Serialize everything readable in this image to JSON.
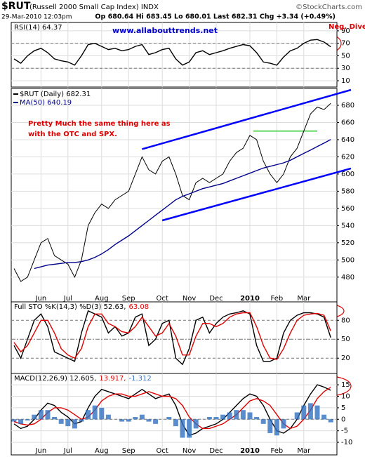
{
  "header": {
    "symbol": "$RUT",
    "name": "(Russell 2000 Small Cap Index) INDX",
    "date": "29-Mar-2010 12:03pm",
    "quote": "Op 680.64 Hi 683.45 Lo 680.01 Last 682.31 Chg +3.34 (+0.49%)",
    "brand": "©StockCharts.com"
  },
  "chart_data": [
    {
      "type": "line",
      "title": "RSI(14) 64.37",
      "ylim": [
        4.4,
        100
      ],
      "yticks": [
        10,
        30,
        50,
        70,
        90
      ],
      "reference_lines": [
        70,
        30
      ],
      "grid": true,
      "annotations": [
        {
          "text": "www.allabouttrends.net",
          "color": "#0000cc"
        },
        {
          "text": "Neg. Divergence",
          "color": "#e00000"
        }
      ],
      "series": [
        {
          "name": "RSI(14)",
          "color": "#000000",
          "values": [
            45,
            38,
            50,
            58,
            62,
            55,
            45,
            42,
            40,
            35,
            50,
            68,
            70,
            65,
            60,
            62,
            58,
            60,
            65,
            68,
            52,
            55,
            60,
            62,
            45,
            35,
            40,
            55,
            58,
            52,
            55,
            58,
            62,
            65,
            68,
            66,
            55,
            40,
            38,
            35,
            48,
            58,
            62,
            70,
            75,
            76,
            72,
            64.37
          ]
        }
      ]
    },
    {
      "type": "line",
      "ylim": [
        461,
        698
      ],
      "yticks": [
        480,
        500,
        520,
        540,
        560,
        580,
        600,
        620,
        640,
        660,
        680
      ],
      "grid": true,
      "categories": [
        null,
        null,
        null,
        null,
        "Jun",
        null,
        null,
        null,
        "Jul",
        null,
        null,
        null,
        null,
        "Aug",
        null,
        null,
        null,
        "Sep",
        null,
        null,
        null,
        null,
        "Oct",
        null,
        null,
        null,
        "Nov",
        null,
        null,
        null,
        "Dec",
        null,
        null,
        null,
        null,
        "2010",
        null,
        null,
        null,
        "Feb",
        null,
        null,
        null,
        "Mar",
        null,
        null,
        null,
        null
      ],
      "annotations": [
        {
          "text": "Pretty Much the same thing here as",
          "color": "#e00000"
        },
        {
          "text": "with the OTC and SPX.",
          "color": "#e00000"
        }
      ],
      "trendlines": [
        {
          "x": [
            19,
            50
          ],
          "y": [
            629,
            698
          ],
          "color": "#0000ff"
        },
        {
          "x": [
            22,
            50
          ],
          "y": [
            546,
            606.5
          ],
          "color": "#0000ff"
        },
        {
          "x": [
            35.5,
            45
          ],
          "y": [
            650,
            650
          ],
          "color": "#00c000"
        }
      ],
      "series": [
        {
          "name": "$RUT (Daily) 682.31",
          "color": "#000000",
          "values": [
            490,
            475,
            480,
            500,
            520,
            525,
            505,
            500,
            495,
            480,
            500,
            540,
            555,
            565,
            560,
            570,
            575,
            580,
            600,
            620,
            605,
            600,
            615,
            620,
            600,
            575,
            570,
            590,
            595,
            590,
            595,
            600,
            615,
            625,
            630,
            645,
            640,
            615,
            600,
            590,
            600,
            620,
            630,
            650,
            670,
            678,
            675,
            682.31
          ]
        },
        {
          "name": "MA(50) 640.19",
          "color": "#00008b",
          "values": [
            null,
            null,
            null,
            490,
            492,
            494,
            495,
            496,
            497,
            497,
            498,
            500,
            503,
            507,
            512,
            518,
            523,
            528,
            534,
            540,
            546,
            552,
            558,
            564,
            570,
            574,
            577,
            580,
            583,
            585,
            587,
            589,
            592,
            595,
            598,
            601,
            604,
            607,
            609,
            611,
            613,
            616,
            620,
            624,
            628,
            632,
            636,
            640.19
          ]
        }
      ]
    },
    {
      "type": "line",
      "ylim": [
        -2,
        107
      ],
      "yticks": [
        20,
        50,
        80
      ],
      "reference_lines": [
        80,
        50,
        20
      ],
      "grid": false,
      "series": [
        {
          "name": "Full STO %K(14,3) %D(3) 52.63,",
          "color": "#000000",
          "values": [
            40,
            20,
            50,
            80,
            90,
            70,
            30,
            25,
            20,
            15,
            60,
            95,
            90,
            85,
            60,
            70,
            55,
            60,
            85,
            90,
            40,
            50,
            75,
            80,
            20,
            10,
            35,
            80,
            85,
            60,
            75,
            85,
            90,
            92,
            95,
            90,
            40,
            15,
            15,
            20,
            60,
            80,
            88,
            92,
            92,
            90,
            85,
            52.63
          ]
        },
        {
          "name": "63.08",
          "color": "#e00000",
          "values": [
            45,
            30,
            40,
            60,
            80,
            80,
            60,
            35,
            25,
            20,
            35,
            70,
            90,
            90,
            75,
            70,
            62,
            60,
            70,
            85,
            70,
            55,
            60,
            75,
            55,
            25,
            25,
            55,
            75,
            75,
            70,
            75,
            85,
            90,
            92,
            92,
            70,
            40,
            20,
            18,
            35,
            60,
            80,
            88,
            90,
            91,
            88,
            63.08
          ]
        }
      ]
    },
    {
      "type": "macd",
      "ylim": [
        -11.2,
        19
      ],
      "yticks": [
        -10,
        -5,
        0,
        5,
        10,
        15
      ],
      "reference_lines": [
        0
      ],
      "grid": true,
      "series": [
        {
          "name": "MACD(12,26,9) 12.605,",
          "color": "#000000",
          "values": [
            -2,
            -4,
            -3,
            0,
            4,
            7,
            6,
            3,
            1,
            -2,
            -1,
            5,
            10,
            13,
            12,
            11,
            10,
            9,
            11,
            13,
            11,
            9,
            10,
            11,
            6,
            -2,
            -7,
            -6,
            -4,
            -3,
            -2,
            0,
            3,
            6,
            9,
            11,
            10,
            6,
            0,
            -5,
            -6,
            -4,
            0,
            6,
            11,
            15,
            14,
            12.605
          ]
        },
        {
          "name": "13.917,",
          "color": "#e00000",
          "values": [
            -1,
            -2,
            -2.5,
            -2,
            0,
            3,
            5,
            5,
            4,
            2,
            0,
            1,
            4,
            8,
            10,
            11,
            11,
            10,
            10,
            11,
            12,
            11,
            10,
            10,
            9,
            6,
            1,
            -2,
            -4,
            -4,
            -3,
            -2,
            0,
            2,
            5,
            8,
            9,
            8,
            6,
            2,
            -2,
            -4,
            -3,
            0,
            4,
            9,
            12,
            13.917
          ]
        },
        {
          "name": "-1.312",
          "color": "#3070c0",
          "histogram": true,
          "values": [
            -1,
            -2,
            -0.5,
            2,
            4,
            4,
            1,
            -2,
            -3,
            -4,
            -1,
            4,
            6,
            5,
            2,
            0,
            -1,
            -1,
            1,
            2,
            -1,
            -2,
            0,
            1,
            -3,
            -8,
            -8,
            -4,
            0,
            1,
            1,
            2,
            3,
            4,
            4,
            3,
            1,
            -2,
            -6,
            -7,
            -4,
            0,
            3,
            6,
            7,
            6,
            2,
            -1.312
          ]
        }
      ]
    }
  ]
}
